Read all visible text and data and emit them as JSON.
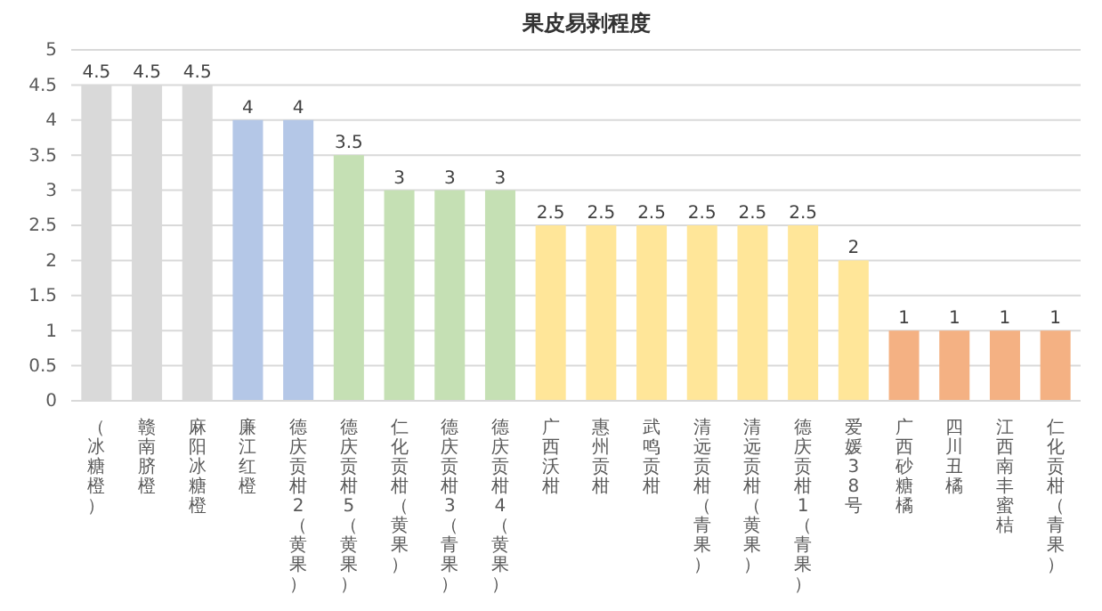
{
  "chart_data": {
    "type": "bar",
    "title": "果皮易剥程度",
    "categories": [
      "（冰糖橙）",
      "赣南脐橙",
      "麻阳冰糖橙",
      "廉江红橙",
      "德庆贡柑2（黄果）",
      "德庆贡柑5（黄果）",
      "仁化贡柑（黄果）",
      "德庆贡柑3（青果）",
      "德庆贡柑4（黄果）",
      "广西沃柑",
      "惠州贡柑",
      "武鸣贡柑",
      "清远贡柑（青果）",
      "清远贡柑（黄果）",
      "德庆贡柑1（青果）",
      "爱媛38号",
      "广西砂糖橘",
      "四川丑橘",
      "江西南丰蜜桔",
      "仁化贡柑（青果）"
    ],
    "values": [
      4.5,
      4.5,
      4.5,
      4,
      4,
      3.5,
      3,
      3,
      3,
      2.5,
      2.5,
      2.5,
      2.5,
      2.5,
      2.5,
      2,
      1,
      1,
      1,
      1
    ],
    "colors": [
      "#d9d9d9",
      "#d9d9d9",
      "#d9d9d9",
      "#b4c7e7",
      "#b4c7e7",
      "#c5e0b4",
      "#c5e0b4",
      "#c5e0b4",
      "#c5e0b4",
      "#ffe699",
      "#ffe699",
      "#ffe699",
      "#ffe699",
      "#ffe699",
      "#ffe699",
      "#ffe699",
      "#f4b183",
      "#f4b183",
      "#f4b183",
      "#f4b183"
    ],
    "ylim": [
      0,
      5
    ],
    "yticks": [
      0,
      0.5,
      1,
      1.5,
      2,
      2.5,
      3,
      3.5,
      4,
      4.5,
      5
    ],
    "grid": "y",
    "data_labels": true
  }
}
